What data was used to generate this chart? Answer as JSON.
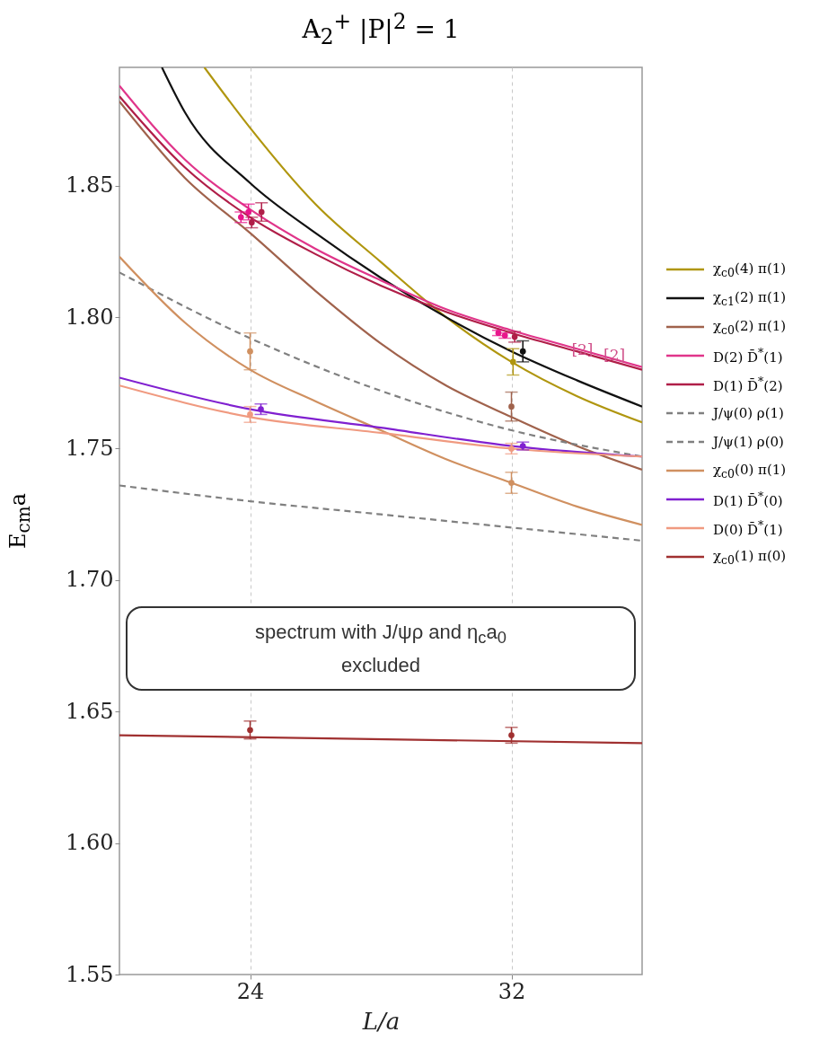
{
  "chart_data": {
    "type": "line",
    "title": "A$_{2}$$^{+}$ |P|$^{2}$ = 1",
    "xlabel": "L/a",
    "ylabel": "E$_{cm}$a",
    "xlim": [
      20,
      36
    ],
    "xticks": [
      24,
      32
    ],
    "ylim": [
      1.55,
      1.895
    ],
    "yticks": [
      1.55,
      {
        "value": 1.6,
        "label": "1.60"
      },
      1.65,
      {
        "value": 1.7,
        "label": "1.70"
      },
      1.75,
      {
        "value": 1.8,
        "label": "1.80"
      },
      1.85
    ],
    "grid": "x",
    "legend": "right",
    "series": [
      {
        "name": "χ$_{c0}$(4) π(1)",
        "color": "#b0960f",
        "x": [
          22.6,
          24,
          26,
          28,
          30,
          32,
          34,
          36
        ],
        "values": [
          1.895,
          1.872,
          1.843,
          1.821,
          1.8,
          1.783,
          1.77,
          1.76
        ]
      },
      {
        "name": "χ$_{c1}$(2) π(1)",
        "color": "#111111",
        "x": [
          21.3,
          22,
          24,
          26,
          28,
          30,
          32,
          34,
          36
        ],
        "values": [
          1.895,
          1.878,
          1.851,
          1.832,
          1.815,
          1.8,
          1.787,
          1.776,
          1.766
        ]
      },
      {
        "name": "χ$_{c0}$(2) π(1)",
        "color": "#a0624c",
        "x": [
          20,
          22,
          24,
          26,
          28,
          30,
          32,
          34,
          36
        ],
        "values": [
          1.882,
          1.853,
          1.832,
          1.81,
          1.79,
          1.774,
          1.762,
          1.751,
          1.742
        ]
      },
      {
        "name": "D(2) D̄$^{*}$(1)",
        "color": "#e0358a",
        "x": [
          20,
          22,
          24,
          26,
          28,
          30,
          32,
          34,
          36
        ],
        "values": [
          1.888,
          1.86,
          1.841,
          1.826,
          1.814,
          1.803,
          1.795,
          1.788,
          1.781
        ]
      },
      {
        "name": "D(1) D̄$^{*}$(2)",
        "color": "#b01e48",
        "x": [
          20,
          22,
          24,
          26,
          28,
          30,
          32,
          34,
          36
        ],
        "values": [
          1.884,
          1.857,
          1.838,
          1.824,
          1.812,
          1.802,
          1.794,
          1.787,
          1.78
        ]
      },
      {
        "name": "J/ψ(0) ρ(1)",
        "color": "#808080",
        "line_style": "dashed",
        "x": [
          20,
          24,
          28,
          32,
          36
        ],
        "values": [
          1.817,
          1.792,
          1.772,
          1.757,
          1.747
        ]
      },
      {
        "name": "J/ψ(1) ρ(0)",
        "color": "#808080",
        "line_style": "dashed",
        "x": [
          20,
          24,
          28,
          32,
          36
        ],
        "values": [
          1.736,
          1.73,
          1.725,
          1.72,
          1.715
        ]
      },
      {
        "name": "χ$_{c0}$(0) π(1)",
        "color": "#d09060",
        "x": [
          20,
          22,
          24,
          26,
          28,
          30,
          32,
          34,
          36
        ],
        "values": [
          1.823,
          1.798,
          1.78,
          1.768,
          1.757,
          1.746,
          1.737,
          1.728,
          1.721
        ]
      },
      {
        "name": "D(1) D̄$^{*}$(0)",
        "color": "#8020d0",
        "x": [
          20,
          24,
          28,
          32,
          36
        ],
        "values": [
          1.777,
          1.765,
          1.758,
          1.751,
          1.747
        ]
      },
      {
        "name": "D(0) D̄$^{*}$(1)",
        "color": "#f09a80",
        "x": [
          20,
          24,
          28,
          32,
          36
        ],
        "values": [
          1.774,
          1.762,
          1.756,
          1.75,
          1.747
        ]
      },
      {
        "name": "χ$_{c0}$(1) π(0)",
        "color": "#a03030",
        "x": [
          20,
          36
        ],
        "values": [
          1.641,
          1.638
        ]
      },
      {
        "type": "scatter",
        "marker": "circle",
        "color": "#e8168c",
        "x": [
          23.72,
          23.95,
          31.6,
          31.8
        ],
        "values": [
          1.838,
          1.84,
          1.794,
          1.793
        ],
        "errors": [
          0.002,
          0.003,
          0.001,
          0.001
        ]
      },
      {
        "type": "scatter",
        "marker": "circle",
        "color": "#b01e48",
        "x": [
          24.05,
          24.35,
          32.1
        ],
        "values": [
          1.836,
          1.84,
          1.7925
        ],
        "errors": [
          0.002,
          0.0035,
          0.002
        ]
      },
      {
        "type": "scatter",
        "marker": "circle",
        "color": "#111111",
        "x": [
          32.35
        ],
        "values": [
          1.787
        ],
        "errors": [
          0.004
        ]
      },
      {
        "type": "scatter",
        "marker": "circle",
        "color": "#b0960f",
        "x": [
          32.05
        ],
        "values": [
          1.783
        ],
        "errors": [
          0.005
        ]
      },
      {
        "type": "scatter",
        "marker": "circle",
        "color": "#d09060",
        "x": [
          24,
          32
        ],
        "values": [
          1.787,
          1.737
        ],
        "errors": [
          0.007,
          0.004
        ]
      },
      {
        "type": "scatter",
        "marker": "circle",
        "color": "#a0624c",
        "x": [
          32
        ],
        "values": [
          1.766
        ],
        "errors": [
          0.0055
        ]
      },
      {
        "type": "scatter",
        "marker": "circle",
        "color": "#8020d0",
        "x": [
          24.33,
          32.35
        ],
        "values": [
          1.765,
          1.751
        ],
        "errors": [
          0.002,
          0.0015
        ]
      },
      {
        "type": "scatter",
        "marker": "circle",
        "color": "#f09a80",
        "x": [
          24,
          32
        ],
        "values": [
          1.763,
          1.75
        ],
        "errors": [
          0.003,
          0.002
        ]
      },
      {
        "type": "scatter",
        "marker": "circle",
        "color": "#a03030",
        "x": [
          24,
          32
        ],
        "values": [
          1.643,
          1.641
        ],
        "errors": [
          0.0034,
          0.003
        ]
      }
    ],
    "annotations": [
      {
        "text": "[2]",
        "x": 34.17,
        "y": 1.786
      },
      {
        "text": "[2]",
        "x": 35.15,
        "y": 1.784
      },
      "spectrum with J/ψρ and η$_{c}$a$_{0}$ excluded"
    ]
  }
}
